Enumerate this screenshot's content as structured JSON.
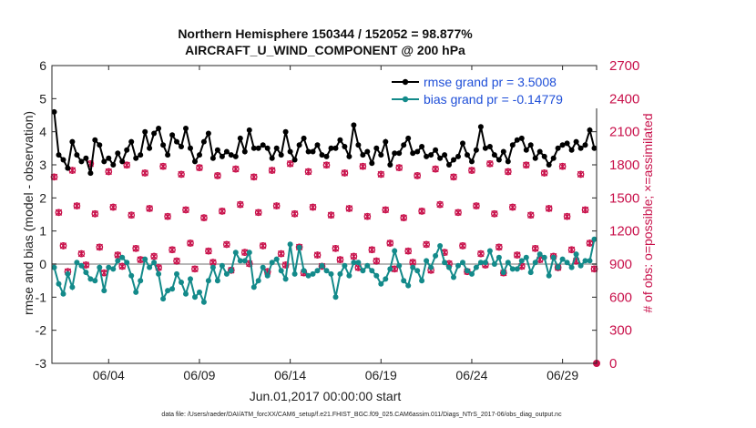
{
  "chart_data": {
    "type": "line",
    "title_line1": "Northern Hemisphere 150344 / 152052 = 98.877%",
    "title_line2": "AIRCRAFT_U_WIND_COMPONENT @ 200 hPa",
    "ylabel_left": "rmse and bias (model - observation)",
    "ylabel_right": "# of obs: o=possible; ×=assimilated",
    "xlabel": "Jun.01,2017 00:00:00 start",
    "footnote": "data file: /Users/raeder/DAI/ATM_forcXX/CAM6_setup/f.e21.FHIST_BGC.f09_025.CAM6assim.011/Diags_NTrS_2017-06/obs_diag_output.nc",
    "xlim": [
      0.5,
      120.5
    ],
    "ylim_left": [
      -3,
      6
    ],
    "ylim_right": [
      0,
      2700
    ],
    "left_ticks": [
      "-3",
      "-2",
      "-1",
      "0",
      "1",
      "2",
      "3",
      "4",
      "5",
      "6"
    ],
    "right_ticks": [
      "0",
      "300",
      "600",
      "900",
      "1200",
      "1500",
      "1800",
      "2100",
      "2400",
      "2700"
    ],
    "x_ticks": [
      {
        "x": 13,
        "label": "06/04"
      },
      {
        "x": 33,
        "label": "06/09"
      },
      {
        "x": 53,
        "label": "06/14"
      },
      {
        "x": 73,
        "label": "06/19"
      },
      {
        "x": 93,
        "label": "06/24"
      },
      {
        "x": 113,
        "label": "06/29"
      }
    ],
    "legend_position": "top-right",
    "series": [
      {
        "name": "rmse grand pr = 3.5008",
        "color": "#000000",
        "axis": "left",
        "values": [
          4.6,
          3.3,
          3.15,
          2.9,
          3.7,
          3.3,
          3.1,
          3.2,
          2.75,
          3.75,
          3.6,
          3.1,
          3.2,
          3.0,
          3.35,
          3.1,
          3.45,
          3.7,
          3.2,
          3.3,
          4.0,
          3.5,
          3.95,
          4.1,
          3.6,
          3.3,
          3.9,
          3.7,
          3.55,
          4.1,
          3.5,
          3.1,
          3.3,
          3.7,
          3.95,
          3.2,
          3.45,
          3.25,
          3.4,
          3.3,
          3.25,
          3.8,
          3.4,
          4.05,
          3.5,
          3.5,
          3.6,
          3.5,
          3.2,
          3.5,
          3.3,
          4.0,
          3.4,
          3.15,
          3.6,
          3.8,
          3.4,
          3.4,
          3.6,
          3.3,
          3.25,
          3.5,
          3.5,
          3.75,
          3.55,
          3.25,
          4.2,
          3.6,
          3.3,
          3.4,
          3.05,
          3.5,
          3.3,
          3.7,
          3.0,
          3.35,
          3.35,
          3.6,
          3.8,
          3.35,
          3.4,
          3.55,
          3.25,
          3.3,
          3.45,
          3.2,
          3.3,
          3.0,
          3.15,
          3.25,
          3.65,
          3.3,
          3.1,
          3.45,
          4.15,
          3.5,
          3.55,
          3.3,
          3.15,
          3.4,
          3.1,
          3.6,
          3.75,
          3.8,
          3.45,
          3.6,
          3.2,
          3.4,
          3.25,
          3.0,
          3.2,
          3.5,
          3.6,
          3.65,
          3.45,
          3.7,
          3.5,
          3.6,
          4.05,
          3.5
        ]
      },
      {
        "name": "bias grand pr = -0.14779",
        "color": "#138a8a",
        "axis": "left",
        "values": [
          -0.1,
          -0.6,
          -0.9,
          -0.3,
          -0.7,
          0.05,
          -0.05,
          -0.25,
          -0.45,
          -0.5,
          -0.1,
          -0.8,
          -0.1,
          -0.15,
          0.1,
          0.2,
          0.05,
          -0.35,
          -0.85,
          -0.5,
          0.15,
          -0.1,
          0.05,
          -0.3,
          -1.05,
          -0.8,
          -0.75,
          -0.3,
          -0.55,
          -0.9,
          -0.45,
          -1.0,
          -0.85,
          -1.15,
          -0.5,
          -0.1,
          -0.5,
          -0.05,
          -0.3,
          -0.2,
          0.35,
          0.1,
          0.1,
          0.35,
          -0.7,
          -0.5,
          -0.1,
          -0.35,
          0.05,
          0.15,
          -0.2,
          -0.45,
          0.6,
          -0.3,
          0.5,
          -0.2,
          -0.35,
          -0.3,
          -0.2,
          -0.05,
          -0.2,
          -0.3,
          -1.0,
          -0.3,
          -0.05,
          -0.35,
          0.05,
          0.05,
          -0.2,
          -0.05,
          -0.2,
          -0.35,
          -0.6,
          -0.45,
          -0.15,
          0.4,
          -0.05,
          -0.5,
          -0.65,
          -0.1,
          -0.2,
          -0.5,
          0.1,
          -0.1,
          0.25,
          0.55,
          0.05,
          -0.1,
          -0.4,
          -0.05,
          0.05,
          -0.2,
          -0.3,
          -0.1,
          0.05,
          0.05,
          0.4,
          0.0,
          0.2,
          -0.25,
          0.05,
          -0.15,
          -0.15,
          0.1,
          0.2,
          -0.25,
          0.05,
          0.3,
          0.2,
          -0.35,
          0.2,
          -0.1,
          0.15,
          0.05,
          -0.1,
          0.3,
          -0.05,
          0.1,
          0.1,
          0.75
        ]
      }
    ]
  }
}
